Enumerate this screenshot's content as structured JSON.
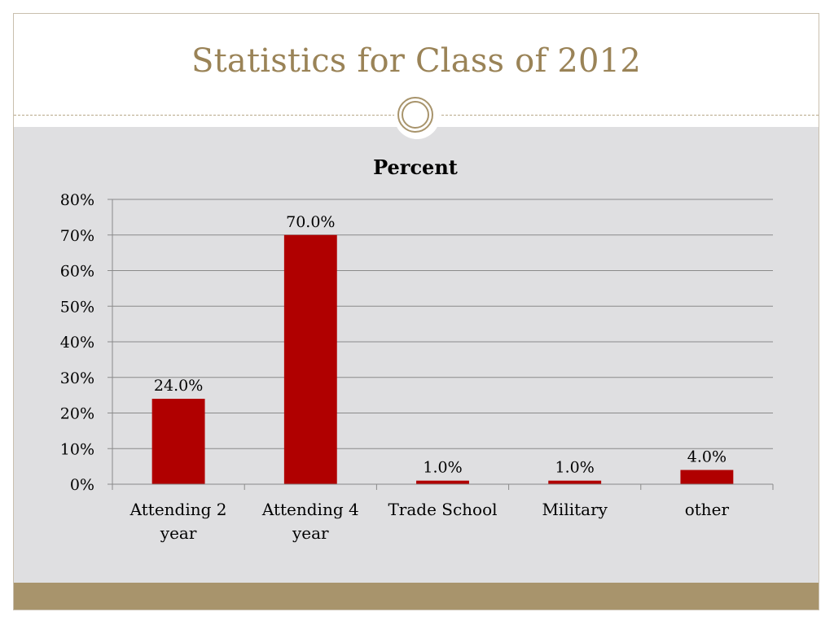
{
  "slide": {
    "title": "Statistics for Class of 2012"
  },
  "colors": {
    "title": "#9a8357",
    "accent": "#a8946c",
    "bar": "#b00000",
    "plot_background": "#dfdfe1"
  },
  "chart_data": {
    "type": "bar",
    "title": "Percent",
    "categories": [
      [
        "Attending 2",
        "year"
      ],
      [
        "Attending 4",
        "year"
      ],
      [
        "Trade School"
      ],
      [
        "Military"
      ],
      [
        "other"
      ]
    ],
    "values": [
      24.0,
      70.0,
      1.0,
      1.0,
      4.0
    ],
    "data_labels": [
      "24.0%",
      "70.0%",
      "1.0%",
      "1.0%",
      "4.0%"
    ],
    "ylim": [
      0,
      80
    ],
    "yticks": [
      0,
      10,
      20,
      30,
      40,
      50,
      60,
      70,
      80
    ],
    "ytick_labels": [
      "0%",
      "10%",
      "20%",
      "30%",
      "40%",
      "50%",
      "60%",
      "70%",
      "80%"
    ],
    "grid": true,
    "legend": "none"
  }
}
